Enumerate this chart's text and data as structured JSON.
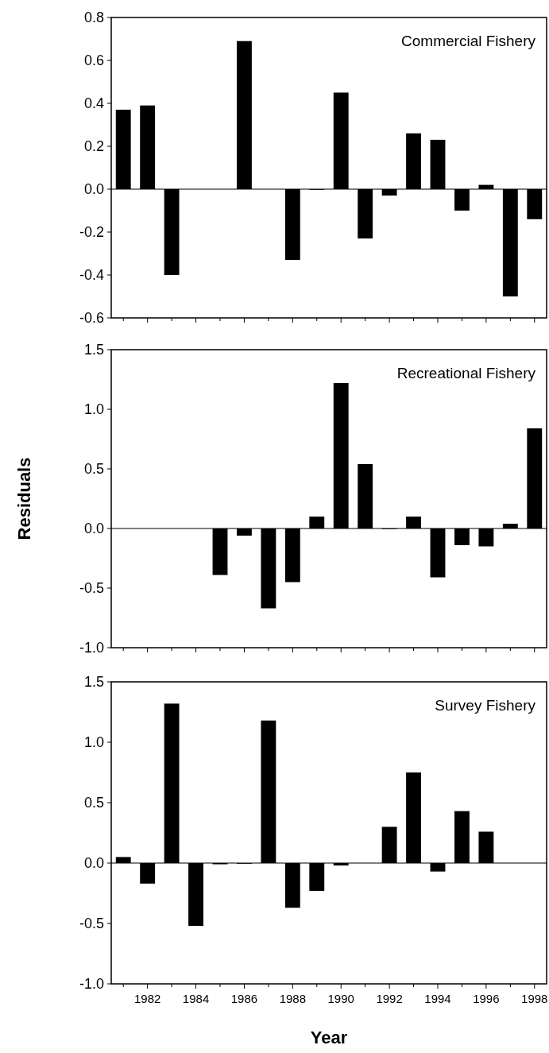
{
  "chart_data": [
    {
      "type": "bar",
      "title": "Commercial Fishery",
      "categories": [
        null,
        "1982",
        null,
        "1984",
        null,
        "1986",
        null,
        "1988",
        null,
        "1990",
        null,
        "1992",
        null,
        "1994",
        null,
        "1996",
        null,
        "1998"
      ],
      "values": [
        0.37,
        0.39,
        -0.4,
        null,
        null,
        0.69,
        null,
        -0.33,
        0.0,
        0.45,
        -0.23,
        -0.03,
        0.26,
        0.23,
        -0.1,
        0.02,
        -0.5,
        -0.14
      ],
      "color": "#000000",
      "ylim": [
        -0.6,
        0.8
      ],
      "yticks": [
        {
          "value": -0.6,
          "label": "-0.6"
        },
        {
          "value": -0.4,
          "label": "-0.4"
        },
        {
          "value": -0.2,
          "label": "-0.2"
        },
        {
          "value": 0,
          "label": "0.0"
        },
        {
          "value": 0.2,
          "label": "0.2"
        },
        {
          "value": 0.4,
          "label": "0.4"
        },
        {
          "value": 0.6,
          "label": "0.6"
        },
        {
          "value": 0.8,
          "label": "0.8"
        }
      ],
      "tick_labels": "y"
    },
    {
      "type": "bar",
      "title": "Recreational Fishery",
      "ylabel": "Residuals",
      "categories": [
        null,
        "1982",
        null,
        "1984",
        null,
        "1986",
        null,
        "1988",
        null,
        "1990",
        null,
        "1992",
        null,
        "1994",
        null,
        "1996",
        null,
        "1998"
      ],
      "values": [
        null,
        null,
        null,
        null,
        -0.39,
        -0.06,
        -0.67,
        -0.45,
        0.1,
        1.22,
        0.54,
        0.0,
        0.1,
        -0.41,
        -0.14,
        -0.15,
        0.04,
        0.84
      ],
      "color": "#000000",
      "ylim": [
        -1.0,
        1.5
      ],
      "yticks": [
        {
          "value": -1,
          "label": "-1.0"
        },
        {
          "value": -0.5,
          "label": "-0.5"
        },
        {
          "value": 0,
          "label": "0.0"
        },
        {
          "value": 0.5,
          "label": "0.5"
        },
        {
          "value": 1,
          "label": "1.0"
        },
        {
          "value": 1.5,
          "label": "1.5"
        }
      ],
      "tick_labels": "y"
    },
    {
      "type": "bar",
      "title": "Survey Fishery",
      "xlabel": "Year",
      "categories": [
        null,
        "1982",
        null,
        "1984",
        null,
        "1986",
        null,
        "1988",
        null,
        "1990",
        null,
        "1992",
        null,
        "1994",
        null,
        "1996",
        null,
        "1998"
      ],
      "values": [
        0.05,
        -0.17,
        1.32,
        -0.52,
        -0.01,
        0.0,
        1.18,
        -0.37,
        -0.23,
        -0.02,
        null,
        0.3,
        0.75,
        -0.07,
        0.43,
        0.26,
        null,
        null
      ],
      "color": "#000000",
      "ylim": [
        -1.0,
        1.5
      ],
      "yticks": [
        {
          "value": -1,
          "label": "-1.0"
        },
        {
          "value": -0.5,
          "label": "-0.5"
        },
        {
          "value": 0,
          "label": "0.0"
        },
        {
          "value": 0.5,
          "label": "0.5"
        },
        {
          "value": 1,
          "label": "1.0"
        },
        {
          "value": 1.5,
          "label": "1.5"
        }
      ]
    }
  ]
}
